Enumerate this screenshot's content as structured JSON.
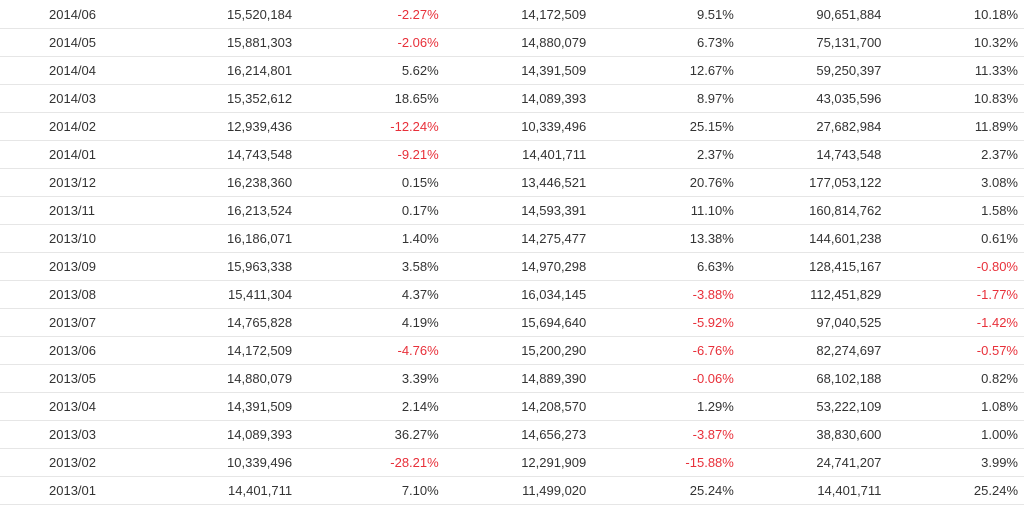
{
  "table": {
    "rows": [
      {
        "month": "2014/06",
        "revenue": "15,520,184",
        "mom": "-2.27%",
        "last_year": "14,172,509",
        "yoy": "9.51%",
        "cumulative": "90,651,884",
        "cum_yoy": "10.18%"
      },
      {
        "month": "2014/05",
        "revenue": "15,881,303",
        "mom": "-2.06%",
        "last_year": "14,880,079",
        "yoy": "6.73%",
        "cumulative": "75,131,700",
        "cum_yoy": "10.32%"
      },
      {
        "month": "2014/04",
        "revenue": "16,214,801",
        "mom": "5.62%",
        "last_year": "14,391,509",
        "yoy": "12.67%",
        "cumulative": "59,250,397",
        "cum_yoy": "11.33%"
      },
      {
        "month": "2014/03",
        "revenue": "15,352,612",
        "mom": "18.65%",
        "last_year": "14,089,393",
        "yoy": "8.97%",
        "cumulative": "43,035,596",
        "cum_yoy": "10.83%"
      },
      {
        "month": "2014/02",
        "revenue": "12,939,436",
        "mom": "-12.24%",
        "last_year": "10,339,496",
        "yoy": "25.15%",
        "cumulative": "27,682,984",
        "cum_yoy": "11.89%"
      },
      {
        "month": "2014/01",
        "revenue": "14,743,548",
        "mom": "-9.21%",
        "last_year": "14,401,711",
        "yoy": "2.37%",
        "cumulative": "14,743,548",
        "cum_yoy": "2.37%"
      },
      {
        "month": "2013/12",
        "revenue": "16,238,360",
        "mom": "0.15%",
        "last_year": "13,446,521",
        "yoy": "20.76%",
        "cumulative": "177,053,122",
        "cum_yoy": "3.08%"
      },
      {
        "month": "2013/11",
        "revenue": "16,213,524",
        "mom": "0.17%",
        "last_year": "14,593,391",
        "yoy": "11.10%",
        "cumulative": "160,814,762",
        "cum_yoy": "1.58%"
      },
      {
        "month": "2013/10",
        "revenue": "16,186,071",
        "mom": "1.40%",
        "last_year": "14,275,477",
        "yoy": "13.38%",
        "cumulative": "144,601,238",
        "cum_yoy": "0.61%"
      },
      {
        "month": "2013/09",
        "revenue": "15,963,338",
        "mom": "3.58%",
        "last_year": "14,970,298",
        "yoy": "6.63%",
        "cumulative": "128,415,167",
        "cum_yoy": "-0.80%"
      },
      {
        "month": "2013/08",
        "revenue": "15,411,304",
        "mom": "4.37%",
        "last_year": "16,034,145",
        "yoy": "-3.88%",
        "cumulative": "112,451,829",
        "cum_yoy": "-1.77%"
      },
      {
        "month": "2013/07",
        "revenue": "14,765,828",
        "mom": "4.19%",
        "last_year": "15,694,640",
        "yoy": "-5.92%",
        "cumulative": "97,040,525",
        "cum_yoy": "-1.42%"
      },
      {
        "month": "2013/06",
        "revenue": "14,172,509",
        "mom": "-4.76%",
        "last_year": "15,200,290",
        "yoy": "-6.76%",
        "cumulative": "82,274,697",
        "cum_yoy": "-0.57%"
      },
      {
        "month": "2013/05",
        "revenue": "14,880,079",
        "mom": "3.39%",
        "last_year": "14,889,390",
        "yoy": "-0.06%",
        "cumulative": "68,102,188",
        "cum_yoy": "0.82%"
      },
      {
        "month": "2013/04",
        "revenue": "14,391,509",
        "mom": "2.14%",
        "last_year": "14,208,570",
        "yoy": "1.29%",
        "cumulative": "53,222,109",
        "cum_yoy": "1.08%"
      },
      {
        "month": "2013/03",
        "revenue": "14,089,393",
        "mom": "36.27%",
        "last_year": "14,656,273",
        "yoy": "-3.87%",
        "cumulative": "38,830,600",
        "cum_yoy": "1.00%"
      },
      {
        "month": "2013/02",
        "revenue": "10,339,496",
        "mom": "-28.21%",
        "last_year": "12,291,909",
        "yoy": "-15.88%",
        "cumulative": "24,741,207",
        "cum_yoy": "3.99%"
      },
      {
        "month": "2013/01",
        "revenue": "14,401,711",
        "mom": "7.10%",
        "last_year": "11,499,020",
        "yoy": "25.24%",
        "cumulative": "14,401,711",
        "cum_yoy": "25.24%"
      }
    ]
  },
  "colors": {
    "negative": "#e8303a",
    "text": "#333333",
    "border": "#e6e6e6"
  }
}
